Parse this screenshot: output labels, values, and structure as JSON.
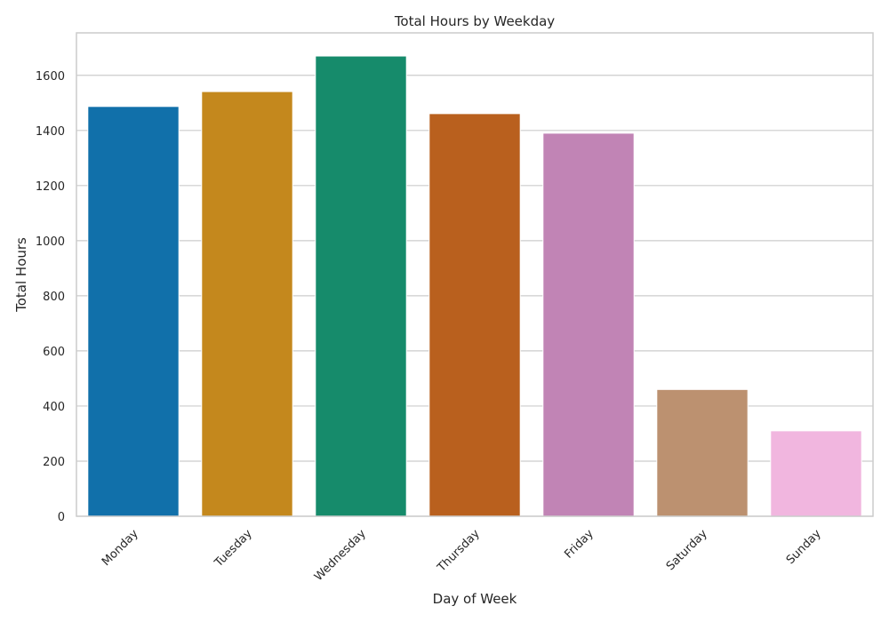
{
  "chart_data": {
    "type": "bar",
    "title": "Total Hours by Weekday",
    "xlabel": "Day of Week",
    "ylabel": "Total Hours",
    "categories": [
      "Monday",
      "Tuesday",
      "Wednesday",
      "Thursday",
      "Friday",
      "Saturday",
      "Sunday"
    ],
    "values": [
      1487,
      1541,
      1670,
      1461,
      1390,
      460,
      310
    ],
    "colors": [
      "#1170aa",
      "#c4881d",
      "#168b6b",
      "#b9601e",
      "#c184b5",
      "#bc9170",
      "#f1b6df"
    ],
    "yticks": [
      0,
      200,
      400,
      600,
      800,
      1000,
      1200,
      1400,
      1600
    ],
    "ylim": [
      0,
      1754
    ],
    "grid": true,
    "xtick_rotation": 45
  }
}
